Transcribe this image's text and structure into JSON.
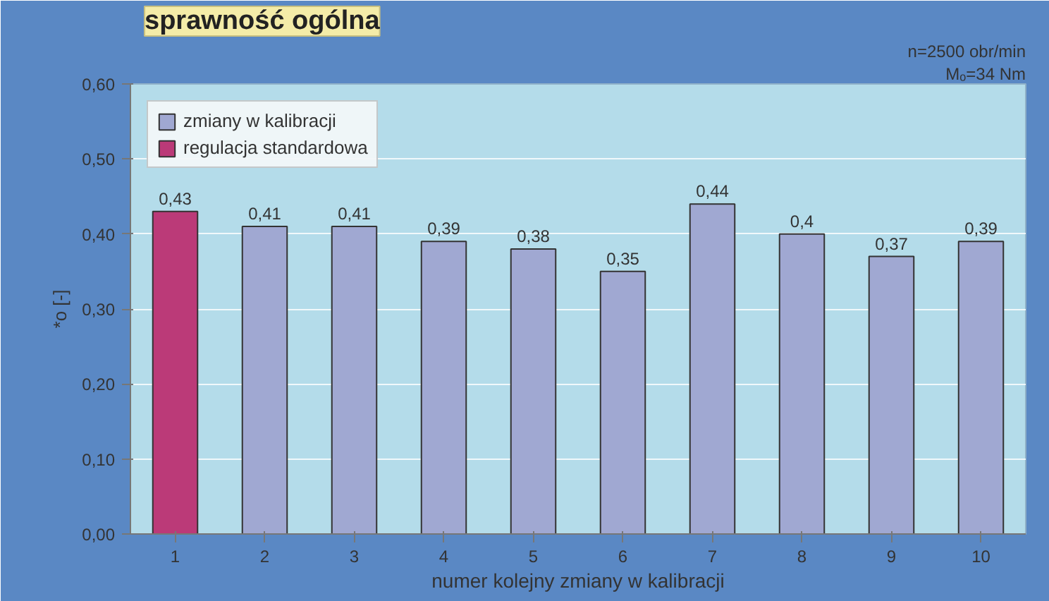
{
  "chart_data": {
    "type": "bar",
    "title": "sprawność ogólna",
    "xlabel": "numer kolejny zmiany w kalibracji",
    "ylabel": "*o [-]",
    "annotations": [
      "n=2500 obr/min",
      "Mₒ=34 Nm"
    ],
    "categories": [
      "1",
      "2",
      "3",
      "4",
      "5",
      "6",
      "7",
      "8",
      "9",
      "10"
    ],
    "series": [
      {
        "name": "zmiany w kalibracji",
        "color": "#a0a8d2",
        "values": [
          null,
          0.41,
          0.41,
          0.39,
          0.38,
          0.35,
          0.44,
          0.4,
          0.37,
          0.39
        ]
      },
      {
        "name": "regulacja standardowa",
        "color": "#bb3a78",
        "values": [
          0.43,
          null,
          null,
          null,
          null,
          null,
          null,
          null,
          null,
          null
        ]
      }
    ],
    "value_labels": [
      "0,43",
      "0,41",
      "0,41",
      "0,39",
      "0,38",
      "0,35",
      "0,44",
      "0,4",
      "0,37",
      "0,39"
    ],
    "ylim": [
      0,
      0.6
    ],
    "yticks": [
      {
        "value": 0,
        "label": "0,00"
      },
      {
        "value": 0.1,
        "label": "0,10"
      },
      {
        "value": 0.2,
        "label": "0,20"
      },
      {
        "value": 0.3,
        "label": "0,30"
      },
      {
        "value": 0.4,
        "label": "0,40"
      },
      {
        "value": 0.5,
        "label": "0,50"
      },
      {
        "value": 0.6,
        "label": "0,60"
      }
    ],
    "grid": "y",
    "legend": "top left"
  }
}
